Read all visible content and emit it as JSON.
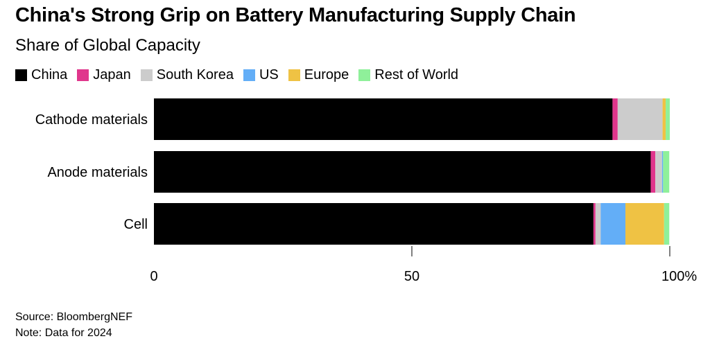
{
  "chart_data": {
    "type": "bar",
    "orientation": "horizontal",
    "stacked": true,
    "title": "China's Strong Grip on Battery Manufacturing Supply Chain",
    "subtitle": "Share of Global Capacity",
    "categories": [
      "Cathode materials",
      "Anode materials",
      "Cell"
    ],
    "series": [
      {
        "name": "China",
        "color": "#000000",
        "values": [
          88.9,
          96.3,
          85.2
        ]
      },
      {
        "name": "Japan",
        "color": "#e0368c",
        "values": [
          1.0,
          0.9,
          0.4
        ]
      },
      {
        "name": "South Korea",
        "color": "#cccccc",
        "values": [
          8.7,
          1.3,
          1.0
        ]
      },
      {
        "name": "US",
        "color": "#63aef7",
        "values": [
          0.0,
          0.2,
          4.8
        ]
      },
      {
        "name": "Europe",
        "color": "#efc244",
        "values": [
          0.6,
          0.0,
          7.5
        ]
      },
      {
        "name": "Rest of World",
        "color": "#8ff09a",
        "values": [
          0.8,
          1.2,
          1.0
        ]
      }
    ],
    "xlim": [
      0,
      100
    ],
    "xticks": [
      "0",
      "50",
      "100%"
    ],
    "legend_position": "top-left",
    "grid": false
  },
  "footer": {
    "source": "Source: BloombergNEF",
    "note": "Note: Data for 2024"
  }
}
